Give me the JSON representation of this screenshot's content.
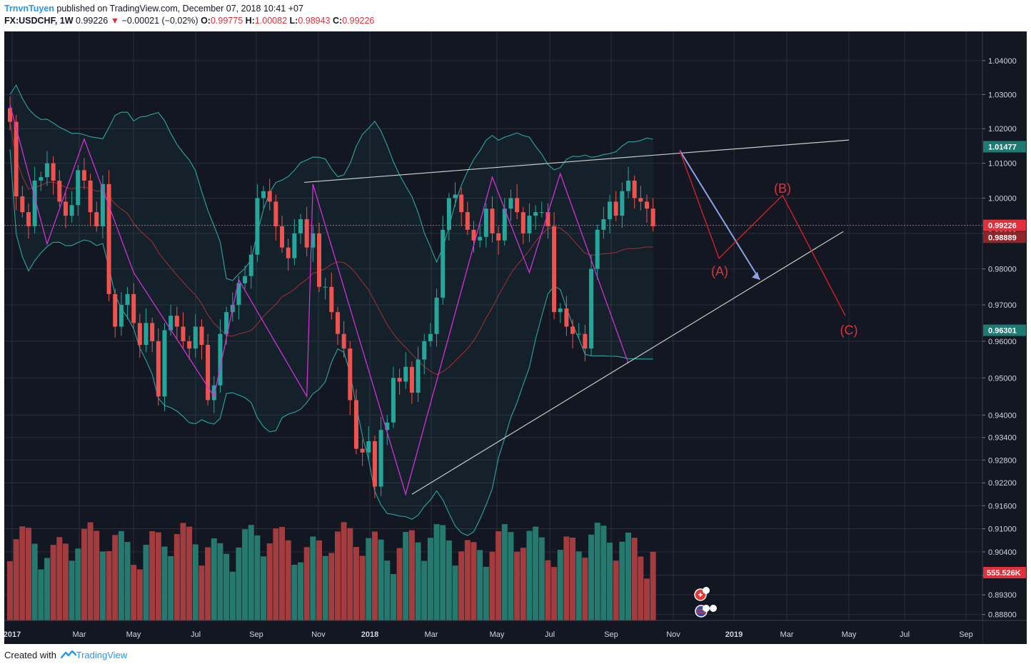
{
  "header": {
    "author": "TrnvnTuyen",
    "published_on": "published on TradingView.com, December 07, 2018 10:41 +07",
    "symbol": "FX:USDCHF",
    "interval": "1W",
    "last": "0.99226",
    "down_arrow": "▼",
    "change": "−0.00021 (−0.02%)",
    "o_label": "O:",
    "o_value": "0.99775",
    "h_label": "H:",
    "h_value": "1.00082",
    "l_label": "L:",
    "l_value": "0.98943",
    "c_label": "C:",
    "c_value": "0.99226"
  },
  "footer": {
    "created_with": "Created with",
    "brand": "TradingView"
  },
  "colors": {
    "background": "#131722",
    "up": "#26a69a",
    "down": "#ef5350",
    "vol_up": "#26796f",
    "vol_down": "#a33c3e",
    "band": "#2c9a97",
    "zigzag": "#d52fd5",
    "forecast": "#d1202e",
    "trendline": "#c9c9c9",
    "arrow": "#8ba2e6"
  },
  "chart_data": {
    "type": "candlestick",
    "y_axis": {
      "range": [
        0.8865,
        1.0455
      ],
      "scale": "log",
      "ticks": [
        "1.04000",
        "1.03000",
        "1.02000",
        "1.01000",
        "1.00000",
        "0.99000",
        "0.98000",
        "0.97000",
        "0.96000",
        "0.95000",
        "0.94000",
        "0.93400",
        "0.92800",
        "0.92200",
        "0.91600",
        "0.91000",
        "0.90400",
        "0.89800",
        "0.89300",
        "0.88800"
      ]
    },
    "x_axis": {
      "ticks": [
        "2017",
        "Mar",
        "May",
        "Jul",
        "Sep",
        "Nov",
        "2018",
        "Mar",
        "May",
        "Jul",
        "Sep",
        "Nov",
        "2019",
        "Mar",
        "May",
        "Jul",
        "Sep"
      ]
    },
    "price_labels": [
      {
        "value": 1.01477,
        "text": "1.01477",
        "kind": "upper-band"
      },
      {
        "value": 0.99226,
        "text": "0.99226",
        "kind": "last-price"
      },
      {
        "value": 0.98889,
        "text": "0.98889",
        "kind": "middle-band"
      },
      {
        "value": 0.96301,
        "text": "0.96301",
        "kind": "lower-band"
      }
    ],
    "volume_label": "555.526K",
    "closes": [
      1.022,
      1.0005,
      0.996,
      0.992,
      1.005,
      1.006,
      1.01,
      1.005,
      0.999,
      0.995,
      0.998,
      1.008,
      1.005,
      0.996,
      0.992,
      1.004,
      0.973,
      0.964,
      0.97,
      0.973,
      0.965,
      0.959,
      0.965,
      0.96,
      0.945,
      0.963,
      0.967,
      0.964,
      0.96,
      0.958,
      0.964,
      0.959,
      0.944,
      0.948,
      0.962,
      0.968,
      0.97,
      0.976,
      0.978,
      0.984,
      1.0,
      1.002,
      0.999,
      0.992,
      0.986,
      0.983,
      0.99,
      0.994,
      0.986,
      0.99,
      0.975,
      0.975,
      0.968,
      0.962,
      0.958,
      0.944,
      0.931,
      0.93,
      0.933,
      0.921,
      0.936,
      0.938,
      0.95,
      0.949,
      0.953,
      0.946,
      0.955,
      0.96,
      0.962,
      0.972,
      0.991,
      1.0,
      1.001,
      0.996,
      0.991,
      0.988,
      0.989,
      0.997,
      0.99,
      0.988,
      0.997,
      1.0,
      0.996,
      0.99,
      0.995,
      0.996,
      0.996,
      0.992,
      0.968,
      0.969,
      0.964,
      0.962,
      0.962,
      0.958,
      0.98,
      0.991,
      0.994,
      0.999,
      0.995,
      1.002,
      1.005,
      1.0,
      0.999,
      0.997,
      0.992
    ],
    "annotations": [
      "(A)",
      "(B)",
      "(C)"
    ]
  }
}
